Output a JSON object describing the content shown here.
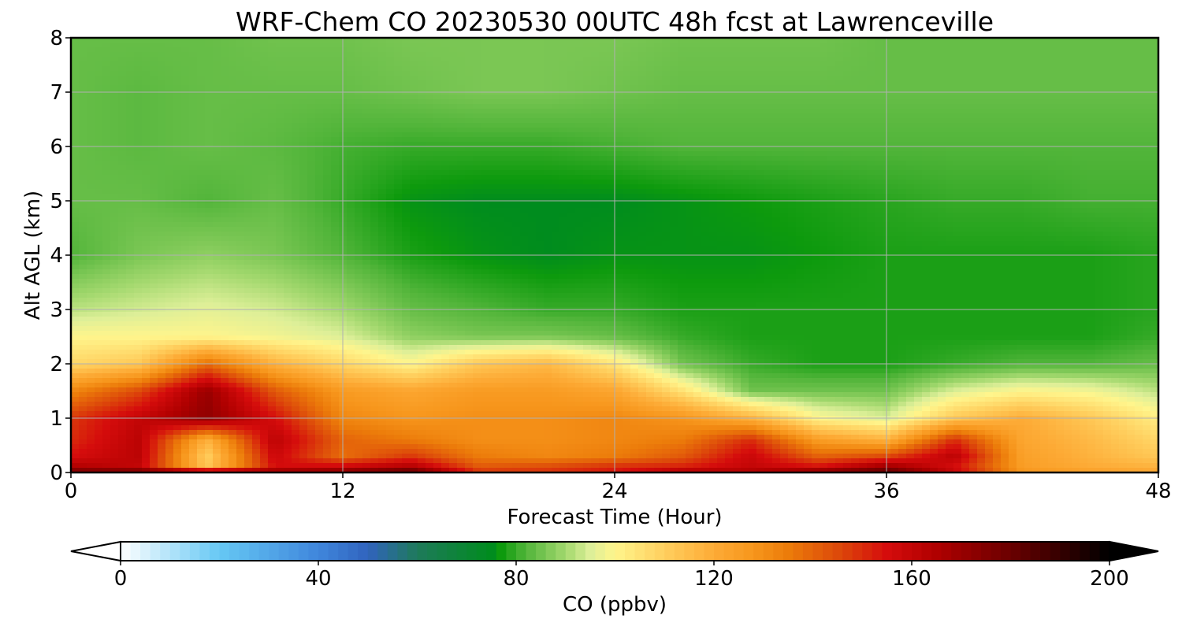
{
  "chart_data": {
    "type": "heatmap",
    "title": "WRF-Chem CO  20230530 00UTC 48h fcst at Lawrenceville",
    "xlabel": "Forecast Time (Hour)",
    "ylabel": "Alt AGL (km)",
    "xlim": [
      0,
      48
    ],
    "ylim": [
      0,
      8
    ],
    "x_ticks": [
      0,
      12,
      24,
      36,
      48
    ],
    "x_tick_labels": [
      "0",
      "12",
      "24",
      "36",
      "48"
    ],
    "y_ticks": [
      0,
      1,
      2,
      3,
      4,
      5,
      6,
      7,
      8
    ],
    "y_tick_labels": [
      "0",
      "1",
      "2",
      "3",
      "4",
      "5",
      "6",
      "7",
      "8"
    ],
    "grid": true,
    "x_hours": [
      0,
      3,
      6,
      9,
      12,
      15,
      18,
      21,
      24,
      27,
      30,
      33,
      36,
      39,
      42,
      45,
      48
    ],
    "alt_km": [
      0,
      0.1,
      0.3,
      0.6,
      1.0,
      1.5,
      2.0,
      2.5,
      3.0,
      4.0,
      5.0,
      6.0,
      7.0,
      8.0
    ],
    "co_ppbv": [
      [
        180,
        182,
        186,
        175,
        178,
        186,
        150,
        150,
        155,
        168,
        166,
        178,
        185,
        160,
        128,
        125,
        122
      ],
      [
        165,
        160,
        112,
        155,
        158,
        165,
        142,
        145,
        150,
        152,
        160,
        155,
        170,
        155,
        125,
        120,
        118
      ],
      [
        155,
        162,
        110,
        158,
        138,
        148,
        135,
        132,
        135,
        142,
        158,
        140,
        145,
        162,
        124,
        118,
        112
      ],
      [
        150,
        162,
        118,
        162,
        140,
        135,
        130,
        130,
        132,
        135,
        150,
        125,
        118,
        150,
        122,
        116,
        108
      ],
      [
        148,
        160,
        172,
        155,
        132,
        128,
        130,
        130,
        132,
        128,
        118,
        100,
        95,
        112,
        120,
        112,
        102
      ],
      [
        132,
        145,
        170,
        142,
        126,
        122,
        126,
        126,
        122,
        105,
        85,
        85,
        85,
        95,
        100,
        98,
        92
      ],
      [
        108,
        112,
        138,
        118,
        108,
        100,
        112,
        116,
        104,
        85,
        80,
        78,
        78,
        80,
        82,
        82,
        84
      ],
      [
        100,
        100,
        100,
        98,
        95,
        88,
        86,
        86,
        84,
        80,
        78,
        78,
        78,
        78,
        78,
        78,
        80
      ],
      [
        92,
        94,
        96,
        94,
        90,
        84,
        82,
        80,
        80,
        78,
        78,
        78,
        78,
        78,
        78,
        78,
        79
      ],
      [
        82,
        86,
        88,
        86,
        82,
        78,
        76,
        75,
        76,
        76,
        76,
        77,
        78,
        78,
        78,
        78,
        79
      ],
      [
        84,
        84,
        82,
        84,
        80,
        76,
        75,
        75,
        75,
        76,
        77,
        78,
        79,
        80,
        80,
        81,
        81
      ],
      [
        84,
        83,
        84,
        83,
        81,
        80,
        80,
        80,
        81,
        82,
        82,
        82,
        82,
        82,
        82,
        82,
        82
      ],
      [
        84,
        83,
        84,
        84,
        84,
        85,
        86,
        86,
        85,
        84,
        84,
        84,
        84,
        84,
        84,
        84,
        84
      ],
      [
        84,
        84,
        84,
        85,
        85,
        86,
        86,
        86,
        86,
        85,
        85,
        85,
        84,
        84,
        84,
        84,
        84
      ]
    ],
    "colorbar": {
      "label": "CO  (ppbv)",
      "min": 0,
      "max": 200,
      "ticks": [
        0,
        40,
        80,
        120,
        160,
        200
      ],
      "tick_labels": [
        "0",
        "40",
        "80",
        "120",
        "160",
        "200"
      ],
      "extend": "both",
      "colormap": [
        {
          "v": 0,
          "c": "#ffffff"
        },
        {
          "v": 20,
          "c": "#66c8f4"
        },
        {
          "v": 40,
          "c": "#3f86dc"
        },
        {
          "v": 50,
          "c": "#3163be"
        },
        {
          "v": 60,
          "c": "#1e7a5a"
        },
        {
          "v": 75,
          "c": "#008c1e"
        },
        {
          "v": 77,
          "c": "#0d9a0d"
        },
        {
          "v": 82,
          "c": "#52b53a"
        },
        {
          "v": 90,
          "c": "#a3d86e"
        },
        {
          "v": 95,
          "c": "#ddef98"
        },
        {
          "v": 100,
          "c": "#fff58c"
        },
        {
          "v": 110,
          "c": "#ffcf5e"
        },
        {
          "v": 120,
          "c": "#fdab36"
        },
        {
          "v": 128,
          "c": "#f7961c"
        },
        {
          "v": 135,
          "c": "#ec7c0a"
        },
        {
          "v": 145,
          "c": "#dd4a0a"
        },
        {
          "v": 155,
          "c": "#d50c0c"
        },
        {
          "v": 165,
          "c": "#b00000"
        },
        {
          "v": 180,
          "c": "#6a0000"
        },
        {
          "v": 192,
          "c": "#2a0000"
        },
        {
          "v": 200,
          "c": "#000000"
        }
      ]
    }
  }
}
